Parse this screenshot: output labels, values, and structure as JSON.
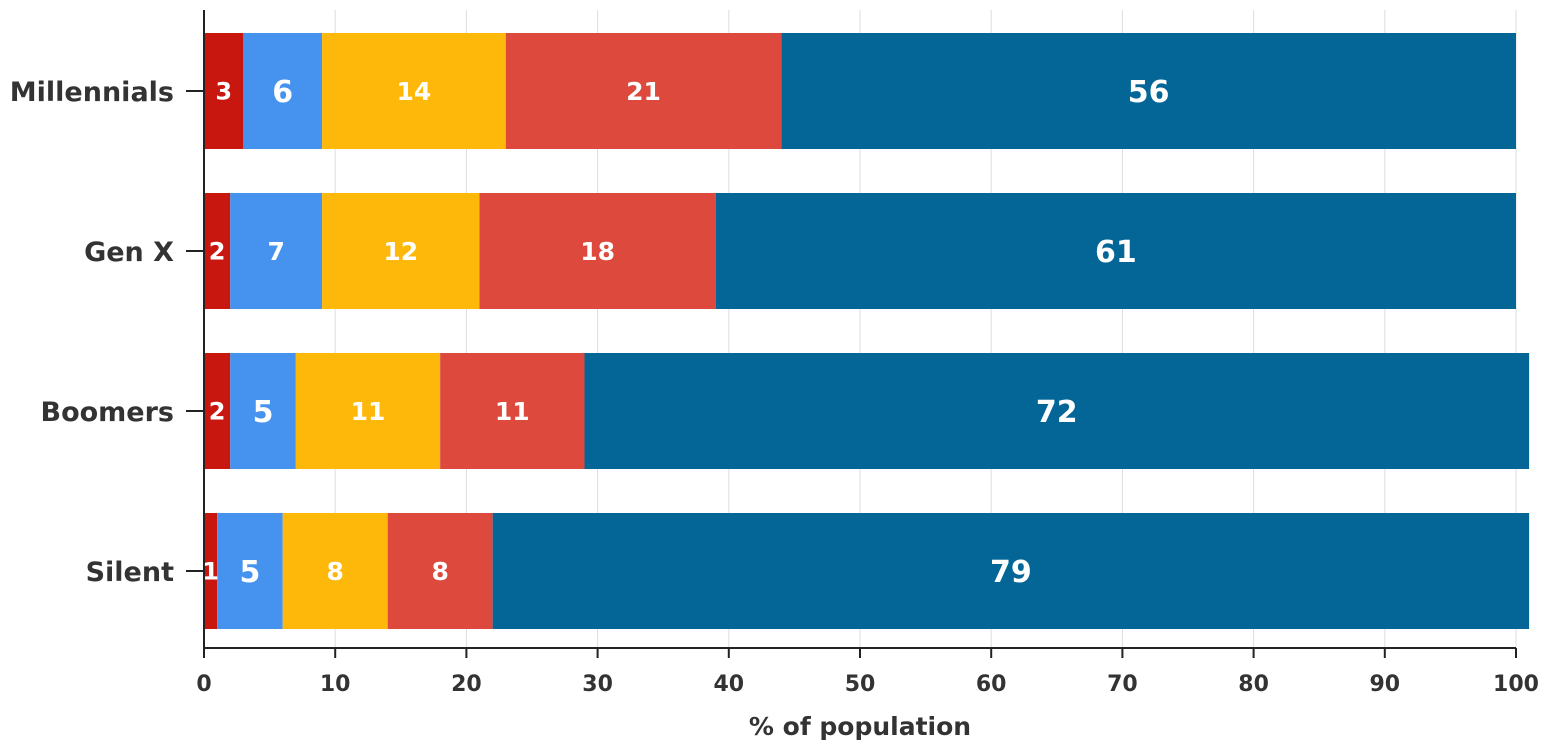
{
  "chart_data": {
    "type": "bar",
    "orientation": "horizontal",
    "stacked": true,
    "categories": [
      "Millennials",
      "Gen X",
      "Boomers",
      "Silent"
    ],
    "series": [
      {
        "values": [
          3,
          2,
          2,
          1
        ],
        "color": "#c8170f"
      },
      {
        "values": [
          6,
          7,
          5,
          5
        ],
        "color": "#4693ef"
      },
      {
        "values": [
          14,
          12,
          11,
          8
        ],
        "color": "#fdb809"
      },
      {
        "values": [
          21,
          18,
          11,
          8
        ],
        "color": "#dd4a3d"
      },
      {
        "values": [
          56,
          61,
          72,
          79
        ],
        "color": "#046697"
      }
    ],
    "xlim": [
      0,
      100
    ],
    "xticks": [
      0,
      10,
      20,
      30,
      40,
      50,
      60,
      70,
      80,
      90,
      100
    ],
    "xlabel": "% of population",
    "ylabel": "",
    "title": "",
    "grid": {
      "vertical": true,
      "color": "#dddddd"
    },
    "legend": "none",
    "axis_color": "#222222",
    "label_color": "#ffffff",
    "text_color": "#333333"
  }
}
